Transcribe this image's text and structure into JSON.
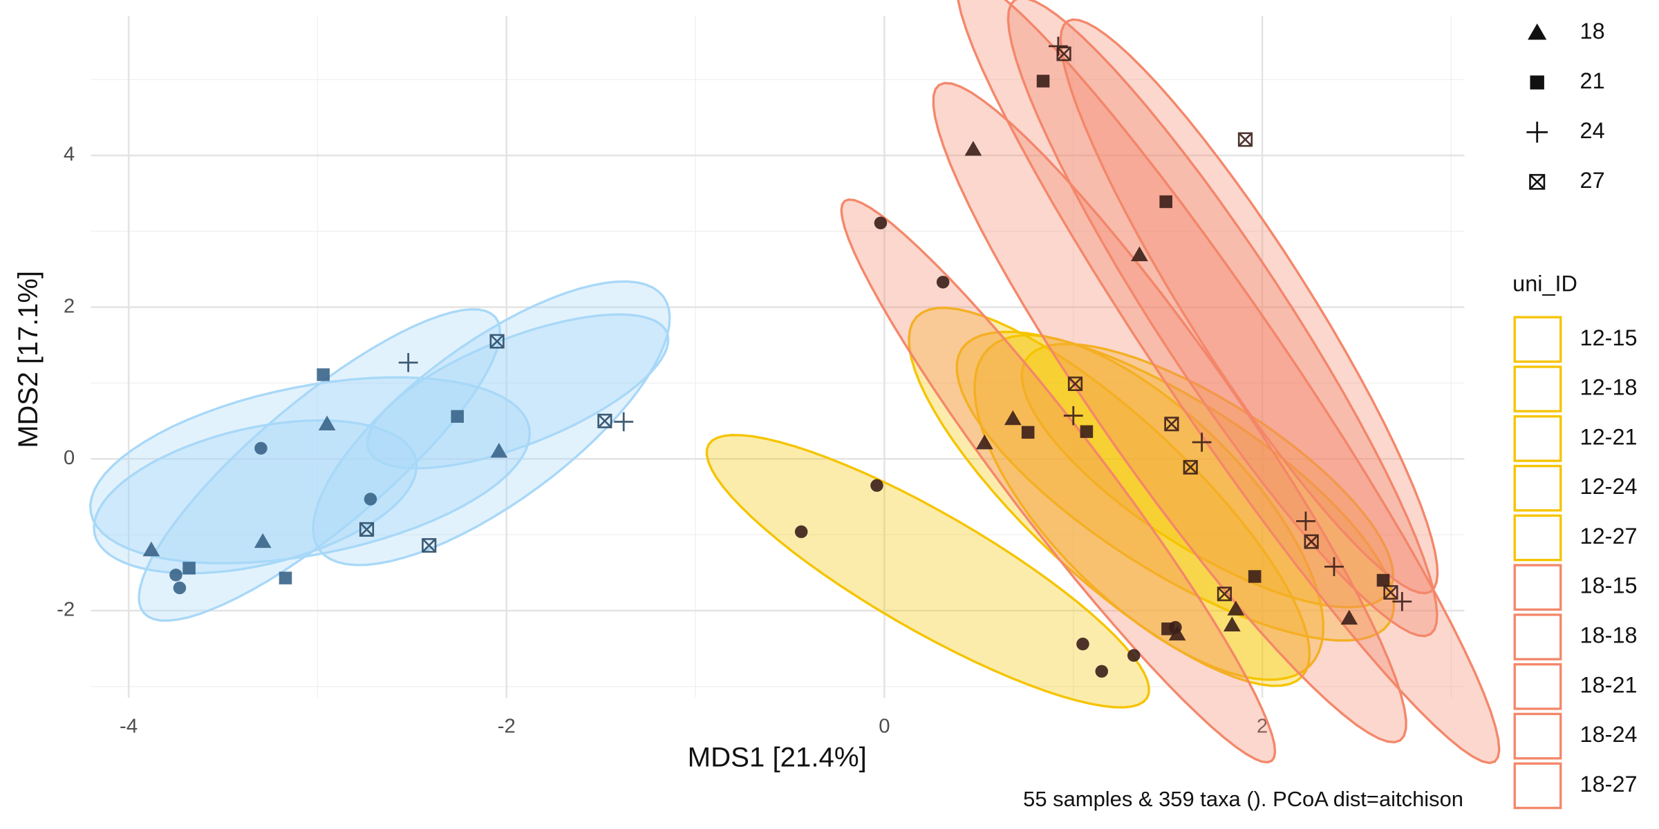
{
  "chart_data": {
    "type": "scatter",
    "x_label": "MDS1 [21.4%]",
    "y_label": "MDS2 [17.1%]",
    "caption": "55 samples & 359 taxa (). PCoA dist=aitchison",
    "xlim": [
      -4.2,
      3.07
    ],
    "ylim": [
      -3.15,
      5.84
    ],
    "xticks": [
      -4,
      -2,
      0,
      2
    ],
    "yticks": [
      -2,
      0,
      2,
      4
    ],
    "grid": true,
    "series": [
      {
        "shape": "circle",
        "color": "#3b1f1a",
        "x": [
          -0.02,
          0.31,
          -0.04,
          -0.44,
          1.05,
          1.15,
          1.32,
          1.54
        ],
        "y": [
          3.11,
          2.33,
          -0.35,
          -0.96,
          -2.44,
          -2.8,
          -2.59,
          -2.22
        ]
      },
      {
        "shape": "circle",
        "color": "#3a6488",
        "x": [
          -3.3,
          -2.72,
          -3.75,
          -3.73
        ],
        "y": [
          0.14,
          -0.53,
          -1.53,
          -1.7
        ]
      },
      {
        "shape": "triangle",
        "color": "#3b1f1a",
        "x": [
          0.47,
          1.35,
          0.53,
          0.68,
          1.55,
          1.86,
          1.84,
          2.46
        ],
        "y": [
          4.08,
          2.69,
          0.21,
          0.53,
          -2.31,
          -1.98,
          -2.19,
          -2.1
        ]
      },
      {
        "shape": "triangle",
        "color": "#3a6488",
        "x": [
          -2.95,
          -2.04,
          -3.29,
          -3.88
        ],
        "y": [
          0.46,
          0.1,
          -1.09,
          -1.2
        ]
      },
      {
        "shape": "square",
        "color": "#3b1f1a",
        "x": [
          0.84,
          1.49,
          0.76,
          1.07,
          1.5,
          1.96,
          2.64
        ],
        "y": [
          4.98,
          3.39,
          0.35,
          0.36,
          -2.24,
          -1.55,
          -1.6
        ]
      },
      {
        "shape": "square",
        "color": "#3a6488",
        "x": [
          -2.97,
          -2.26,
          -3.68,
          -3.17
        ],
        "y": [
          1.11,
          0.56,
          -1.44,
          -1.57
        ]
      },
      {
        "shape": "plus",
        "color": "#3b1f1a",
        "x": [
          0.92,
          1.0,
          1.68,
          2.23,
          2.38,
          2.74
        ],
        "y": [
          5.44,
          0.57,
          0.22,
          -0.82,
          -1.42,
          -1.88
        ]
      },
      {
        "shape": "plus",
        "color": "#2b4a66",
        "x": [
          -2.52,
          -1.38
        ],
        "y": [
          1.27,
          0.49
        ]
      },
      {
        "shape": "boxx",
        "color": "#3b1f1a",
        "x": [
          0.95,
          1.91,
          1.01,
          1.52,
          1.62,
          2.26,
          1.8,
          2.68
        ],
        "y": [
          5.34,
          4.21,
          0.99,
          0.46,
          -0.11,
          -1.09,
          -1.78,
          -1.76
        ]
      },
      {
        "shape": "boxx",
        "color": "#2b4a66",
        "x": [
          -2.05,
          -1.48,
          -2.74,
          -2.41
        ],
        "y": [
          1.55,
          0.5,
          -0.93,
          -1.14
        ]
      }
    ],
    "ellipses": [
      {
        "color": "#f5c400",
        "center": [
          0.23,
          -1.48
        ],
        "axis1": [
          1.16,
          -1.67
        ],
        "axis2": [
          -0.16,
          -0.66
        ]
      },
      {
        "color": "#f5c400",
        "center": [
          1.19,
          -0.5
        ],
        "axis1": [
          1.02,
          -2.37
        ],
        "axis2": [
          -0.29,
          -0.77
        ]
      },
      {
        "color": "#f5c400",
        "center": [
          1.54,
          -0.36
        ],
        "axis1": [
          1.13,
          -1.81
        ],
        "axis2": [
          -0.25,
          -0.93
        ]
      },
      {
        "color": "#f5c400",
        "center": [
          1.71,
          -0.22
        ],
        "axis1": [
          0.96,
          -1.53
        ],
        "axis2": [
          -0.21,
          -0.82
        ]
      },
      {
        "color": "#f5c400",
        "center": [
          1.4,
          -0.64
        ],
        "axis1": [
          0.85,
          -2.09
        ],
        "axis2": [
          -0.36,
          -0.89
        ]
      },
      {
        "color": "#f4876a",
        "center": [
          0.92,
          -0.29
        ],
        "axis1": [
          1.13,
          -3.69
        ],
        "axis2": [
          -0.2,
          -0.38
        ]
      },
      {
        "color": "#f4876a",
        "center": [
          1.51,
          0.61
        ],
        "axis1": [
          1.22,
          -4.32
        ],
        "axis2": [
          -0.28,
          -0.47
        ]
      },
      {
        "color": "#f4876a",
        "center": [
          1.82,
          1.17
        ],
        "axis1": [
          1.41,
          -5.16
        ],
        "axis2": [
          -0.26,
          -0.43
        ]
      },
      {
        "color": "#f4876a",
        "center": [
          1.79,
          1.87
        ],
        "axis1": [
          1.1,
          -4.18
        ],
        "axis2": [
          -0.28,
          -0.46
        ]
      },
      {
        "color": "#f4876a",
        "center": [
          1.93,
          2.01
        ],
        "axis1": [
          0.96,
          -3.76
        ],
        "axis2": [
          -0.27,
          -0.4
        ]
      },
      {
        "color": "#a8d8f8",
        "center": [
          -3.33,
          -0.5
        ],
        "axis1": [
          0.85,
          0.49
        ],
        "axis2": [
          0.08,
          -0.88
        ]
      },
      {
        "color": "#a8d8f8",
        "center": [
          -3.04,
          -0.15
        ],
        "axis1": [
          1.16,
          0.56
        ],
        "axis2": [
          0.08,
          -1.09
        ]
      },
      {
        "color": "#a8d8f8",
        "center": [
          -2.99,
          -0.08
        ],
        "axis1": [
          0.93,
          1.95
        ],
        "axis2": [
          0.22,
          -0.64
        ]
      },
      {
        "color": "#a8d8f8",
        "center": [
          -2.08,
          0.47
        ],
        "axis1": [
          0.91,
          1.67
        ],
        "axis2": [
          0.25,
          -0.84
        ]
      },
      {
        "color": "#a8d8f8",
        "center": [
          -1.94,
          0.89
        ],
        "axis1": [
          0.79,
          0.77
        ],
        "axis2": [
          0.1,
          -0.66
        ]
      }
    ],
    "shape_legend": [
      {
        "label": "18",
        "shape": "triangle"
      },
      {
        "label": "21",
        "shape": "square"
      },
      {
        "label": "24",
        "shape": "plus"
      },
      {
        "label": "27",
        "shape": "boxx"
      }
    ],
    "color_legend": {
      "title": "uni_ID",
      "entries": [
        {
          "label": "12-15",
          "color": "#f5c400"
        },
        {
          "label": "12-18",
          "color": "#f5c400"
        },
        {
          "label": "12-21",
          "color": "#f5c400"
        },
        {
          "label": "12-24",
          "color": "#f5c400"
        },
        {
          "label": "12-27",
          "color": "#f5c400"
        },
        {
          "label": "18-15",
          "color": "#f4876a"
        },
        {
          "label": "18-18",
          "color": "#f4876a"
        },
        {
          "label": "18-21",
          "color": "#f4876a"
        },
        {
          "label": "18-24",
          "color": "#f4876a"
        },
        {
          "label": "18-27",
          "color": "#f4876a"
        }
      ]
    }
  }
}
